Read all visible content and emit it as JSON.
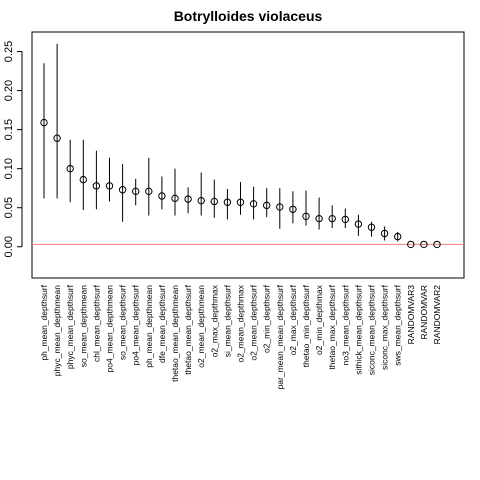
{
  "chart_data": {
    "type": "scatter",
    "title": "Botrylloides violaceus",
    "xlabel": "",
    "ylabel": "",
    "ylim": [
      -0.04,
      0.275
    ],
    "y_ticks": [
      0.0,
      0.05,
      0.1,
      0.15,
      0.2,
      0.25
    ],
    "y_tick_labels": [
      "0.00",
      "0.05",
      "0.10",
      "0.15",
      "0.20",
      "0.25"
    ],
    "grid": false,
    "reference_line": {
      "y": 0.003,
      "color": "#f08080"
    },
    "categories": [
      "ph_mean_depthsurf",
      "phyc_mean_depthmean",
      "phyc_mean_depthsurf",
      "so_mean_depthmean",
      "chl_mean_depthsurf",
      "po4_mean_depthmean",
      "so_mean_depthsurf",
      "po4_mean_depthsurf",
      "ph_mean_depthmean",
      "dfe_mean_depthsurf",
      "thetao_mean_depthmean",
      "thetao_mean_depthsurf",
      "o2_mean_depthmean",
      "o2_max_depthmax",
      "si_mean_depthsurf",
      "o2_mean_depthmax",
      "o2_mean_depthsurf",
      "o2_min_depthsurf",
      "par_mean_mean_depthsurf",
      "o2_max_depthsurf",
      "thetao_min_depthsurf",
      "o2_min_depthmax",
      "thetao_max_depthsurf",
      "no3_mean_depthsurf",
      "sithick_mean_depthsurf",
      "siconc_mean_depthsurf",
      "siconc_max_depthsurf",
      "sws_mean_depthsurf",
      "RANDOMVAR3",
      "RANDOMVAR",
      "RANDOMVAR2"
    ],
    "values": [
      0.159,
      0.139,
      0.1,
      0.086,
      0.078,
      0.078,
      0.073,
      0.071,
      0.071,
      0.065,
      0.062,
      0.061,
      0.059,
      0.058,
      0.057,
      0.057,
      0.055,
      0.053,
      0.051,
      0.048,
      0.039,
      0.036,
      0.036,
      0.035,
      0.029,
      0.025,
      0.017,
      0.013,
      0.003,
      0.003,
      0.003
    ],
    "lower": [
      0.062,
      0.062,
      0.057,
      0.047,
      0.048,
      0.058,
      0.032,
      0.053,
      0.04,
      0.048,
      0.04,
      0.043,
      0.04,
      0.037,
      0.035,
      0.041,
      0.035,
      0.038,
      0.023,
      0.03,
      0.027,
      0.022,
      0.024,
      0.024,
      0.014,
      0.013,
      0.008,
      0.007,
      0.003,
      0.003,
      0.003
    ],
    "upper": [
      0.235,
      0.26,
      0.137,
      0.137,
      0.123,
      0.114,
      0.106,
      0.087,
      0.114,
      0.09,
      0.1,
      0.076,
      0.095,
      0.086,
      0.074,
      0.083,
      0.077,
      0.075,
      0.075,
      0.071,
      0.072,
      0.063,
      0.053,
      0.049,
      0.041,
      0.032,
      0.026,
      0.019,
      0.003,
      0.003,
      0.003
    ]
  }
}
